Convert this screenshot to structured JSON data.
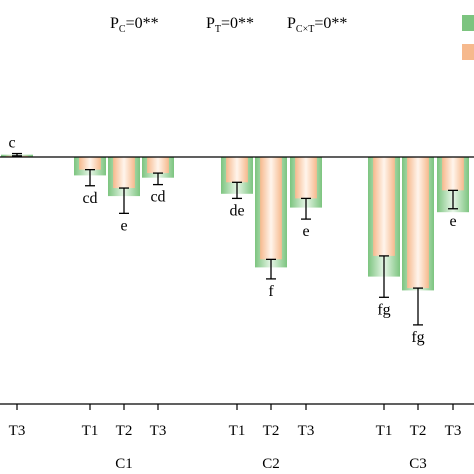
{
  "chart_data": {
    "type": "bar",
    "title": "",
    "xlabel": "",
    "ylabel": "",
    "zero_line": true,
    "stats": [
      "P_C=0**",
      "P_T=0**",
      "P_C×T=0**"
    ],
    "stats_parts": [
      {
        "base": "P",
        "sub": "C",
        "rest": "=0**"
      },
      {
        "base": "P",
        "sub": "T",
        "rest": "=0**"
      },
      {
        "base": "P",
        "sub": "C×T",
        "rest": "=0**"
      }
    ],
    "legend_placement": "top-right",
    "group_labels": [
      "C1",
      "C2",
      "C3"
    ],
    "tick_labels": [
      "T3",
      "T1",
      "T2",
      "T3",
      "T1",
      "T2",
      "T3",
      "T1",
      "T2",
      "T3"
    ],
    "colors": {
      "series_a": "#7cc47f",
      "series_b": "#f6b98d",
      "error": "#000000"
    },
    "bars": [
      {
        "group": "",
        "treatment": "T3",
        "a": 0.1,
        "b": 0.05,
        "err": 0.1,
        "letter": "c"
      },
      {
        "group": "C1",
        "treatment": "T1",
        "a": -0.8,
        "b": -0.55,
        "err": 0.7,
        "letter": "cd"
      },
      {
        "group": "C1",
        "treatment": "T2",
        "a": -1.7,
        "b": -1.35,
        "err": 1.1,
        "letter": "e"
      },
      {
        "group": "C1",
        "treatment": "T3",
        "a": -0.9,
        "b": -0.7,
        "err": 0.5,
        "letter": "cd"
      },
      {
        "group": "C2",
        "treatment": "T1",
        "a": -1.6,
        "b": -1.1,
        "err": 0.7,
        "letter": "de"
      },
      {
        "group": "C2",
        "treatment": "T2",
        "a": -4.8,
        "b": -4.45,
        "err": 0.85,
        "letter": "f"
      },
      {
        "group": "C2",
        "treatment": "T3",
        "a": -2.2,
        "b": -1.8,
        "err": 0.9,
        "letter": "e"
      },
      {
        "group": "C3",
        "treatment": "T1",
        "a": -5.2,
        "b": -4.3,
        "err": 1.8,
        "letter": "fg"
      },
      {
        "group": "C3",
        "treatment": "T2",
        "a": -5.8,
        "b": -5.7,
        "err": 1.6,
        "letter": "fg"
      },
      {
        "group": "C3",
        "treatment": "T3",
        "a": -2.4,
        "b": -1.45,
        "err": 0.8,
        "letter": "e"
      }
    ]
  }
}
